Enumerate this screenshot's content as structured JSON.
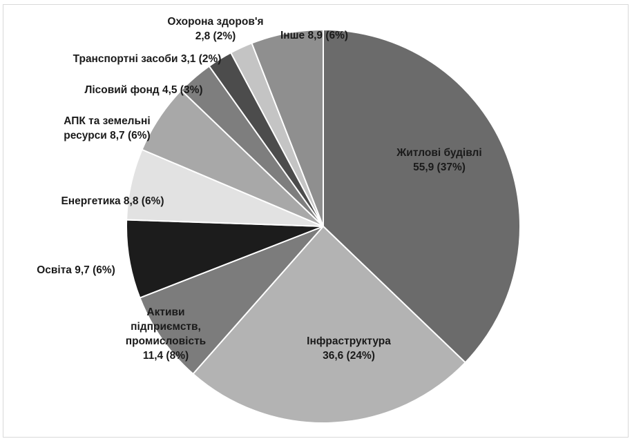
{
  "chart_data": {
    "type": "pie",
    "slices": [
      {
        "category": "Житлові будівлі",
        "value": 55.9,
        "percent": 37,
        "color": "#6b6b6b",
        "label_lines": [
          "Житлові будівлі",
          "55,9 (37%)"
        ]
      },
      {
        "category": "Інфраструктура",
        "value": 36.6,
        "percent": 24,
        "color": "#b3b3b3",
        "label_lines": [
          "Інфраструктура",
          "36,6 (24%)"
        ]
      },
      {
        "category": "Активи підприємств, промисловість",
        "value": 11.4,
        "percent": 8,
        "color": "#7c7c7c",
        "label_lines": [
          "Активи",
          "підприємств,",
          "промисловість",
          "11,4 (8%)"
        ]
      },
      {
        "category": "Освіта",
        "value": 9.7,
        "percent": 6,
        "color": "#1c1c1c",
        "label_lines": [
          "Освіта 9,7 (6%)"
        ]
      },
      {
        "category": "Енергетика",
        "value": 8.8,
        "percent": 6,
        "color": "#e2e2e2",
        "label_lines": [
          "Енергетика 8,8 (6%)"
        ]
      },
      {
        "category": "АПК та земельні ресурси",
        "value": 8.7,
        "percent": 6,
        "color": "#a8a8a8",
        "label_lines": [
          "АПК та земельні",
          "ресурси 8,7 (6%)"
        ]
      },
      {
        "category": "Лісовий фонд",
        "value": 4.5,
        "percent": 3,
        "color": "#7e7e7e",
        "label_lines": [
          "Лісовий фонд 4,5 (3%)"
        ]
      },
      {
        "category": "Транспортні засоби",
        "value": 3.1,
        "percent": 2,
        "color": "#4c4c4c",
        "label_lines": [
          "Транспортні засоби 3,1 (2%)"
        ]
      },
      {
        "category": "Охорона здоров'я",
        "value": 2.8,
        "percent": 2,
        "color": "#c4c4c4",
        "label_lines": [
          "Охорона здоров'я",
          "2,8 (2%)"
        ]
      },
      {
        "category": "Інше",
        "value": 8.9,
        "percent": 6,
        "color": "#8f8f8f",
        "label_lines": [
          "Інше 8,9 (6%)"
        ]
      }
    ],
    "title": "",
    "legend": "none"
  }
}
